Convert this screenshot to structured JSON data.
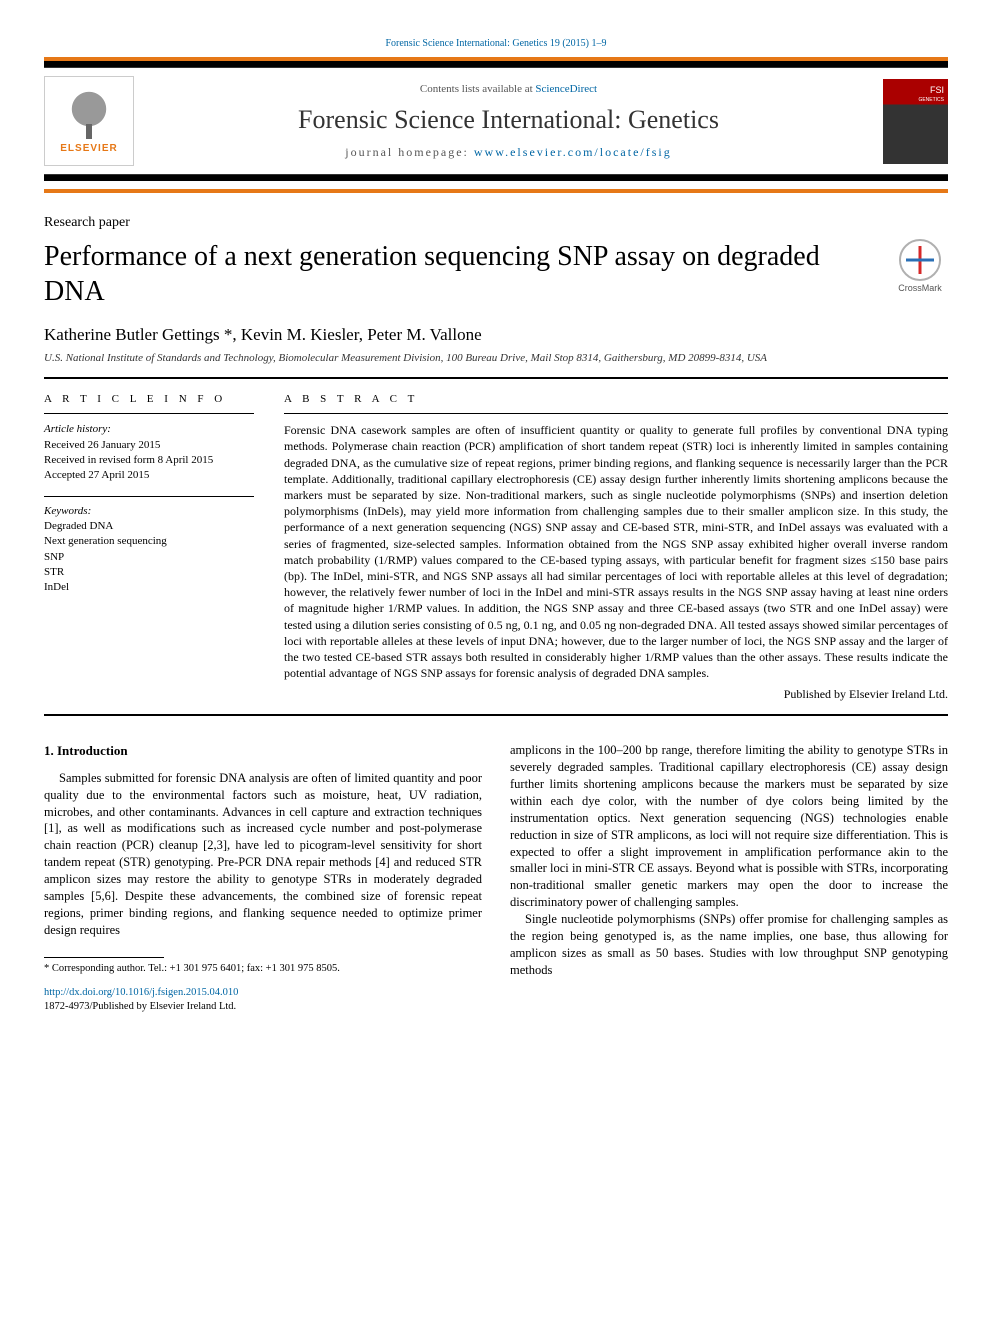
{
  "header": {
    "top_link": "Forensic Science International: Genetics 19 (2015) 1–9",
    "contents_label": "Contents lists available at ",
    "contents_site": "ScienceDirect",
    "journal_name": "Forensic Science International: Genetics",
    "homepage_label": "journal homepage: ",
    "homepage_url": "www.elsevier.com/locate/fsig",
    "elsevier_name": "ELSEVIER",
    "crossmark_label": "CrossMark",
    "colors": {
      "link": "#0066a4",
      "orange": "#e67817",
      "black": "#000000",
      "crossmark_red": "#d62828",
      "crossmark_blue": "#2a6fb5"
    }
  },
  "article": {
    "paper_type": "Research paper",
    "title": "Performance of a next generation sequencing SNP assay on degraded DNA",
    "authors": "Katherine Butler Gettings *, Kevin M. Kiesler, Peter M. Vallone",
    "affiliation": "U.S. National Institute of Standards and Technology, Biomolecular Measurement Division, 100 Bureau Drive, Mail Stop 8314, Gaithersburg, MD 20899-8314, USA"
  },
  "info": {
    "heading": "A R T I C L E  I N F O",
    "history_label": "Article history:",
    "history": {
      "received": "Received 26 January 2015",
      "revised": "Received in revised form 8 April 2015",
      "accepted": "Accepted 27 April 2015"
    },
    "keywords_label": "Keywords:",
    "keywords": [
      "Degraded DNA",
      "Next generation sequencing",
      "SNP",
      "STR",
      "InDel"
    ]
  },
  "abstract": {
    "heading": "A B S T R A C T",
    "text": "Forensic DNA casework samples are often of insufficient quantity or quality to generate full profiles by conventional DNA typing methods. Polymerase chain reaction (PCR) amplification of short tandem repeat (STR) loci is inherently limited in samples containing degraded DNA, as the cumulative size of repeat regions, primer binding regions, and flanking sequence is necessarily larger than the PCR template. Additionally, traditional capillary electrophoresis (CE) assay design further inherently limits shortening amplicons because the markers must be separated by size. Non-traditional markers, such as single nucleotide polymorphisms (SNPs) and insertion deletion polymorphisms (InDels), may yield more information from challenging samples due to their smaller amplicon size. In this study, the performance of a next generation sequencing (NGS) SNP assay and CE-based STR, mini-STR, and InDel assays was evaluated with a series of fragmented, size-selected samples. Information obtained from the NGS SNP assay exhibited higher overall inverse random match probability (1/RMP) values compared to the CE-based typing assays, with particular benefit for fragment sizes ≤150 base pairs (bp). The InDel, mini-STR, and NGS SNP assays all had similar percentages of loci with reportable alleles at this level of degradation; however, the relatively fewer number of loci in the InDel and mini-STR assays results in the NGS SNP assay having at least nine orders of magnitude higher 1/RMP values. In addition, the NGS SNP assay and three CE-based assays (two STR and one InDel assay) were tested using a dilution series consisting of 0.5 ng, 0.1 ng, and 0.05 ng non-degraded DNA. All tested assays showed similar percentages of loci with reportable alleles at these levels of input DNA; however, due to the larger number of loci, the NGS SNP assay and the larger of the two tested CE-based STR assays both resulted in considerably higher 1/RMP values than the other assays. These results indicate the potential advantage of NGS SNP assays for forensic analysis of degraded DNA samples.",
    "published_by": "Published by Elsevier Ireland Ltd."
  },
  "body": {
    "section_heading": "1. Introduction",
    "left_para": "Samples submitted for forensic DNA analysis are often of limited quantity and poor quality due to the environmental factors such as moisture, heat, UV radiation, microbes, and other contaminants. Advances in cell capture and extraction techniques [1], as well as modifications such as increased cycle number and post-polymerase chain reaction (PCR) cleanup [2,3], have led to picogram-level sensitivity for short tandem repeat (STR) genotyping. Pre-PCR DNA repair methods [4] and reduced STR amplicon sizes may restore the ability to genotype STRs in moderately degraded samples [5,6]. Despite these advancements, the combined size of forensic repeat regions, primer binding regions, and flanking sequence needed to optimize primer design requires",
    "right_para1": "amplicons in the 100–200 bp range, therefore limiting the ability to genotype STRs in severely degraded samples. Traditional capillary electrophoresis (CE) assay design further limits shortening amplicons because the markers must be separated by size within each dye color, with the number of dye colors being limited by the instrumentation optics. Next generation sequencing (NGS) technologies enable reduction in size of STR amplicons, as loci will not require size differentiation. This is expected to offer a slight improvement in amplification performance akin to the smaller loci in mini-STR CE assays. Beyond what is possible with STRs, incorporating non-traditional smaller genetic markers may open the door to increase the discriminatory power of challenging samples.",
    "right_para2": "Single nucleotide polymorphisms (SNPs) offer promise for challenging samples as the region being genotyped is, as the name implies, one base, thus allowing for amplicon sizes as small as 50 bases. Studies with low throughput SNP genotyping methods"
  },
  "footer": {
    "corresponding": "* Corresponding author. Tel.: +1 301 975 6401; fax: +1 301 975 8505.",
    "doi_url": "http://dx.doi.org/10.1016/j.fsigen.2015.04.010",
    "copyright": "1872-4973/Published by Elsevier Ireland Ltd."
  }
}
